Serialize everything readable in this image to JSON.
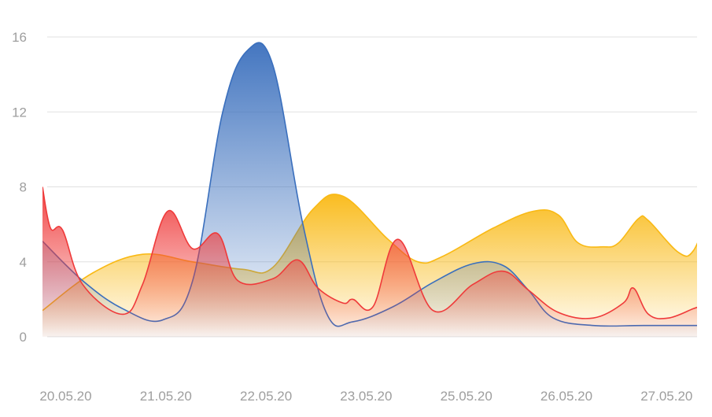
{
  "chart_data": {
    "type": "area",
    "title": "",
    "xlabel": "",
    "ylabel": "",
    "ylim": [
      0,
      16
    ],
    "y_ticks": [
      "0",
      "4",
      "8",
      "12",
      "16"
    ],
    "grid": true,
    "legend": "none",
    "x_tick_labels": [
      "20.05.20",
      "21.05.20",
      "22.05.20",
      "23.05.20",
      "25.05.20",
      "26.05.20",
      "27.05.20"
    ],
    "series": [
      {
        "color": "#f9b914",
        "x": [
          0,
          0.5,
          1,
          1.5,
          2,
          2.3,
          2.7,
          3,
          3.45,
          3.75,
          4,
          4.5,
          4.9,
          5.15,
          5.35,
          5.6,
          5.75,
          5.95,
          6.05,
          6.35,
          6.5,
          6.65
        ],
        "y": [
          1.4,
          3.4,
          4.4,
          4.0,
          3.6,
          3.7,
          6.8,
          7.5,
          5.2,
          4.0,
          4.3,
          5.8,
          6.7,
          6.5,
          5.0,
          4.8,
          5.0,
          6.3,
          6.2,
          4.5,
          4.6,
          6.6
        ]
      },
      {
        "color": "#3a6fbd",
        "x": [
          0,
          0.4,
          0.8,
          1.2,
          1.5,
          1.8,
          2.05,
          2.3,
          2.6,
          2.85,
          3.1,
          3.5,
          3.9,
          4.3,
          4.6,
          4.85,
          5.1,
          5.5,
          6.0,
          6.65
        ],
        "y": [
          5.1,
          3.0,
          1.5,
          0.9,
          3.0,
          12.0,
          15.3,
          14.5,
          6.0,
          1.1,
          0.8,
          1.6,
          2.9,
          3.9,
          3.8,
          2.5,
          1.0,
          0.6,
          0.6,
          0.6
        ]
      },
      {
        "color": "#ef3a3a",
        "x": [
          0,
          0.08,
          0.2,
          0.4,
          0.8,
          1.0,
          1.25,
          1.5,
          1.75,
          1.95,
          2.3,
          2.55,
          2.75,
          3.0,
          3.1,
          3.3,
          3.55,
          3.9,
          4.3,
          4.6,
          4.85,
          5.15,
          5.5,
          5.8,
          5.9,
          6.05,
          6.25,
          6.5,
          6.65
        ],
        "y": [
          8.0,
          5.8,
          5.7,
          2.8,
          1.2,
          2.8,
          6.7,
          4.7,
          5.5,
          3.0,
          3.1,
          4.1,
          2.6,
          1.8,
          2.0,
          1.6,
          5.2,
          1.4,
          2.8,
          3.5,
          2.5,
          1.3,
          1.0,
          1.8,
          2.6,
          1.2,
          1.0,
          1.5,
          1.8
        ]
      }
    ]
  }
}
